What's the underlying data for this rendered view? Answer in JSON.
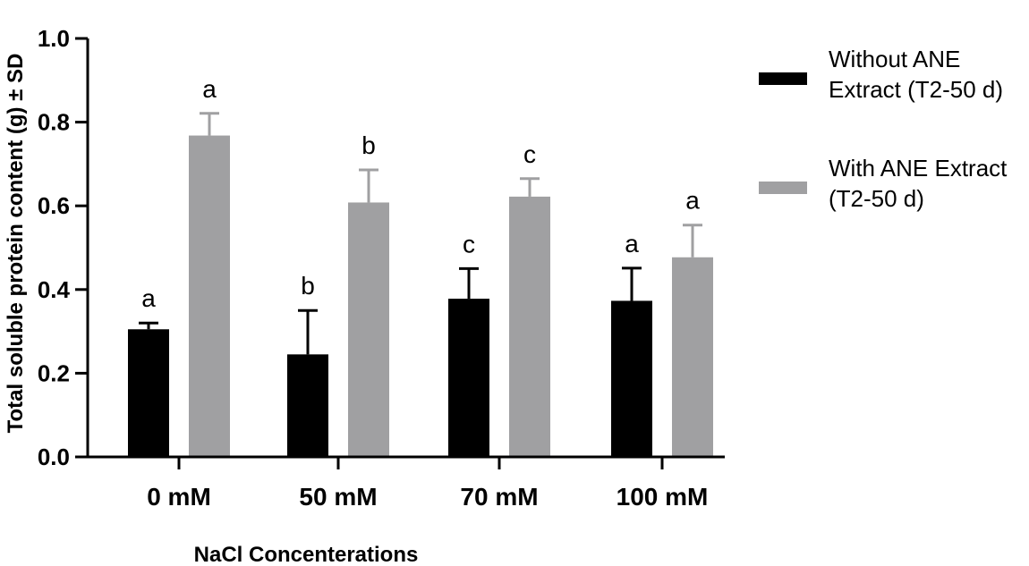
{
  "chart_data": {
    "type": "bar",
    "title": "",
    "xlabel": "NaCl Concenterations",
    "ylabel": "Total soluble protein content (g) ± SD",
    "ylim": [
      0,
      1.0
    ],
    "yticks": [
      "0.0",
      "0.2",
      "0.4",
      "0.6",
      "0.8",
      "1.0"
    ],
    "categories": [
      "0 mM",
      "50 mM",
      "70 mM",
      "100 mM"
    ],
    "series": [
      {
        "name": "Without ANE Extract (T2-50 d)",
        "legend_lines": [
          "Without ANE",
          "Extract (T2-50 d)"
        ],
        "color": "#000000",
        "values": [
          0.305,
          0.245,
          0.378,
          0.373
        ],
        "sd": [
          0.015,
          0.105,
          0.072,
          0.078
        ],
        "labels": [
          "a",
          "b",
          "c",
          "a"
        ]
      },
      {
        "name": "With ANE Extract (T2-50 d)",
        "legend_lines": [
          "With ANE Extract",
          "(T2-50 d)"
        ],
        "color": "#a0a0a2",
        "values": [
          0.768,
          0.608,
          0.622,
          0.477
        ],
        "sd": [
          0.053,
          0.078,
          0.043,
          0.077
        ],
        "labels": [
          "a",
          "b",
          "c",
          "a"
        ]
      }
    ],
    "grid": false,
    "legend_position": "right"
  }
}
